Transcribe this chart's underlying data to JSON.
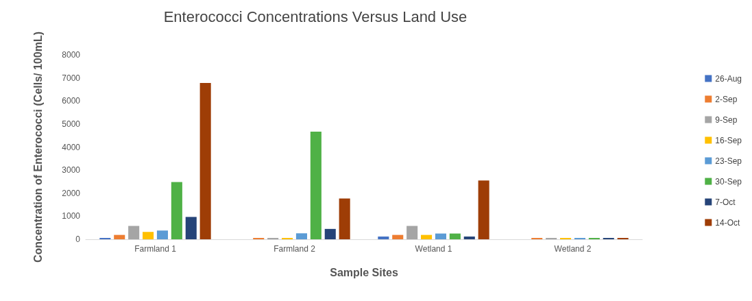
{
  "chart_data": {
    "type": "bar",
    "title": "Enterococci Concentrations Versus Land Use",
    "xlabel": "Sample Sites",
    "ylabel": "Concentration of Enterococci (Cells/ 100mL)",
    "categories": [
      "Farmland 1",
      "Farmland 2",
      "Wetland 1",
      "Wetland 2"
    ],
    "series": [
      {
        "name": "26-Aug",
        "color": "#4472c4",
        "values": [
          60,
          0,
          120,
          0
        ]
      },
      {
        "name": "2-Sep",
        "color": "#ed7d31",
        "values": [
          190,
          60,
          190,
          60
        ]
      },
      {
        "name": "9-Sep",
        "color": "#a5a5a5",
        "values": [
          580,
          60,
          580,
          60
        ]
      },
      {
        "name": "16-Sep",
        "color": "#ffc000",
        "values": [
          320,
          60,
          190,
          60
        ]
      },
      {
        "name": "23-Sep",
        "color": "#5b9bd5",
        "values": [
          380,
          260,
          250,
          60
        ]
      },
      {
        "name": "30-Sep",
        "color": "#4fb146",
        "values": [
          2480,
          4670,
          250,
          60
        ]
      },
      {
        "name": "7-Oct",
        "color": "#264478",
        "values": [
          970,
          450,
          120,
          60
        ]
      },
      {
        "name": "14-Oct",
        "color": "#9e3d06",
        "values": [
          6780,
          1770,
          2550,
          60
        ]
      }
    ],
    "ylim": [
      0,
      8000
    ],
    "yticks": [
      0,
      1000,
      2000,
      3000,
      4000,
      5000,
      6000,
      7000,
      8000
    ],
    "grid": false,
    "legend": "right"
  }
}
